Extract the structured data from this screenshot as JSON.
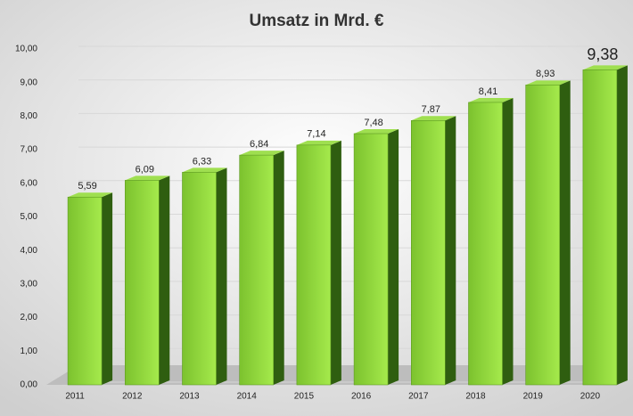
{
  "chart_data": {
    "type": "bar3d",
    "title": "Umsatz in Mrd.  €",
    "categories": [
      "2011",
      "2012",
      "2013",
      "2014",
      "2015",
      "2016",
      "2017",
      "2018",
      "2019",
      "2020"
    ],
    "values": [
      5.59,
      6.09,
      6.33,
      6.84,
      7.14,
      7.48,
      7.87,
      8.41,
      8.93,
      9.38
    ],
    "value_labels": [
      "5,59",
      "6,09",
      "6,33",
      "6,84",
      "7,14",
      "7,48",
      "7,87",
      "8,41",
      "8,93",
      "9,38"
    ],
    "color": "#8fd43c",
    "ylim": [
      0,
      10
    ],
    "yticks": [
      {
        "value": 0,
        "label": "0,00"
      },
      {
        "value": 1,
        "label": "1,00"
      },
      {
        "value": 2,
        "label": "2,00"
      },
      {
        "value": 3,
        "label": "3,00"
      },
      {
        "value": 4,
        "label": "4,00"
      },
      {
        "value": 5,
        "label": "5,00"
      },
      {
        "value": 6,
        "label": "6,00"
      },
      {
        "value": 7,
        "label": "7,00"
      },
      {
        "value": 8,
        "label": "8,00"
      },
      {
        "value": 9,
        "label": "9,00"
      },
      {
        "value": 10,
        "label": "10,00"
      }
    ],
    "grid": true
  }
}
